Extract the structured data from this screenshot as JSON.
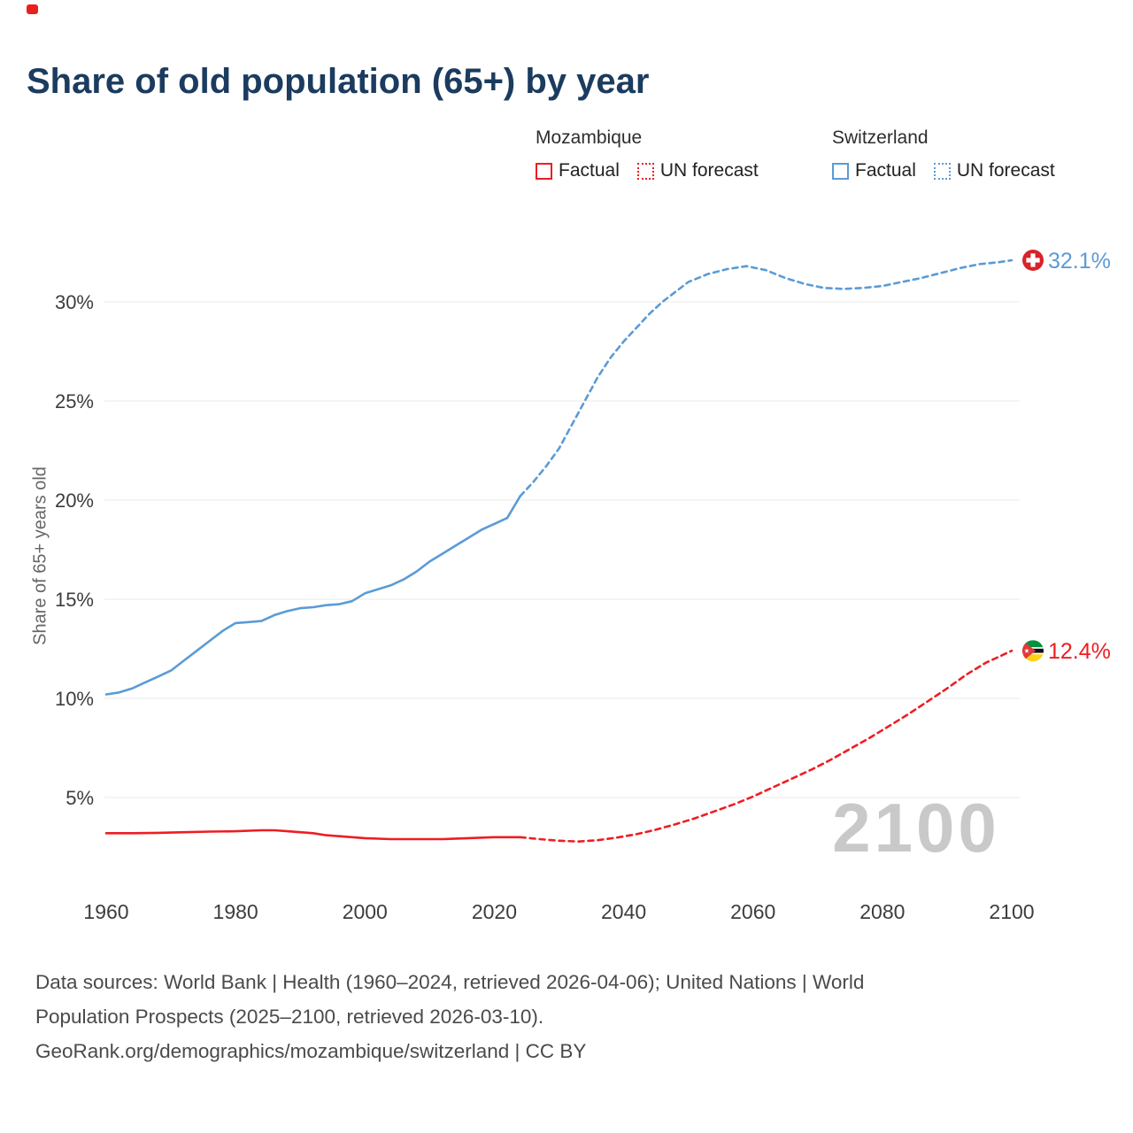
{
  "title": "Share of old population (65+) by year",
  "legend": {
    "groups": [
      {
        "name": "Mozambique",
        "color": "#ee1d23",
        "items": [
          {
            "label": "Factual",
            "style": "solid"
          },
          {
            "label": "UN forecast",
            "style": "dotted"
          }
        ]
      },
      {
        "name": "Switzerland",
        "color": "#5b9bd5",
        "items": [
          {
            "label": "Factual",
            "style": "solid"
          },
          {
            "label": "UN forecast",
            "style": "dotted"
          }
        ]
      }
    ]
  },
  "chart_data": {
    "type": "line",
    "title": "Share of old population (65+) by year",
    "xlabel": "",
    "ylabel": "Share of 65+ years old",
    "x_ticks": [
      1960,
      1980,
      2000,
      2020,
      2040,
      2060,
      2080,
      2100
    ],
    "y_ticks": [
      5,
      10,
      15,
      20,
      25,
      30
    ],
    "y_tick_labels": [
      "5%",
      "10%",
      "15%",
      "20%",
      "25%",
      "30%"
    ],
    "xlim": [
      1958,
      2104
    ],
    "ylim": [
      2,
      33.5
    ],
    "grid": "horizontal",
    "legend_position": "top-right",
    "watermark": "2100",
    "series": [
      {
        "name": "Switzerland Factual",
        "color": "#5b9bd5",
        "style": "solid",
        "points": [
          [
            1960,
            10.2
          ],
          [
            1962,
            10.3
          ],
          [
            1964,
            10.5
          ],
          [
            1966,
            10.8
          ],
          [
            1968,
            11.1
          ],
          [
            1970,
            11.4
          ],
          [
            1972,
            11.9
          ],
          [
            1974,
            12.4
          ],
          [
            1976,
            12.9
          ],
          [
            1978,
            13.4
          ],
          [
            1980,
            13.8
          ],
          [
            1982,
            13.85
          ],
          [
            1984,
            13.9
          ],
          [
            1986,
            14.2
          ],
          [
            1988,
            14.4
          ],
          [
            1990,
            14.55
          ],
          [
            1992,
            14.6
          ],
          [
            1994,
            14.7
          ],
          [
            1996,
            14.75
          ],
          [
            1998,
            14.9
          ],
          [
            2000,
            15.3
          ],
          [
            2002,
            15.5
          ],
          [
            2004,
            15.7
          ],
          [
            2006,
            16.0
          ],
          [
            2008,
            16.4
          ],
          [
            2010,
            16.9
          ],
          [
            2012,
            17.3
          ],
          [
            2014,
            17.7
          ],
          [
            2016,
            18.1
          ],
          [
            2018,
            18.5
          ],
          [
            2020,
            18.8
          ],
          [
            2022,
            19.1
          ],
          [
            2024,
            20.2
          ]
        ]
      },
      {
        "name": "Switzerland UN forecast",
        "color": "#5b9bd5",
        "style": "dashed",
        "end_label": "32.1%",
        "points": [
          [
            2024,
            20.2
          ],
          [
            2026,
            20.9
          ],
          [
            2028,
            21.7
          ],
          [
            2030,
            22.6
          ],
          [
            2032,
            23.8
          ],
          [
            2034,
            25.0
          ],
          [
            2036,
            26.2
          ],
          [
            2038,
            27.2
          ],
          [
            2040,
            28.0
          ],
          [
            2042,
            28.7
          ],
          [
            2044,
            29.4
          ],
          [
            2046,
            30.0
          ],
          [
            2048,
            30.5
          ],
          [
            2050,
            31.0
          ],
          [
            2053,
            31.4
          ],
          [
            2056,
            31.65
          ],
          [
            2059,
            31.8
          ],
          [
            2062,
            31.6
          ],
          [
            2065,
            31.2
          ],
          [
            2068,
            30.9
          ],
          [
            2071,
            30.7
          ],
          [
            2074,
            30.65
          ],
          [
            2077,
            30.7
          ],
          [
            2080,
            30.8
          ],
          [
            2083,
            31.0
          ],
          [
            2086,
            31.2
          ],
          [
            2089,
            31.45
          ],
          [
            2092,
            31.7
          ],
          [
            2095,
            31.9
          ],
          [
            2098,
            32.0
          ],
          [
            2100,
            32.1
          ]
        ]
      },
      {
        "name": "Mozambique Factual",
        "color": "#ee1d23",
        "style": "solid",
        "points": [
          [
            1960,
            3.2
          ],
          [
            1964,
            3.2
          ],
          [
            1968,
            3.22
          ],
          [
            1972,
            3.25
          ],
          [
            1976,
            3.28
          ],
          [
            1980,
            3.3
          ],
          [
            1984,
            3.35
          ],
          [
            1986,
            3.35
          ],
          [
            1988,
            3.3
          ],
          [
            1990,
            3.25
          ],
          [
            1992,
            3.2
          ],
          [
            1994,
            3.1
          ],
          [
            1996,
            3.05
          ],
          [
            1998,
            3.0
          ],
          [
            2000,
            2.95
          ],
          [
            2004,
            2.9
          ],
          [
            2008,
            2.9
          ],
          [
            2012,
            2.9
          ],
          [
            2016,
            2.95
          ],
          [
            2020,
            3.0
          ],
          [
            2024,
            3.0
          ]
        ]
      },
      {
        "name": "Mozambique UN forecast",
        "color": "#ee1d23",
        "style": "dashed",
        "end_label": "12.4%",
        "points": [
          [
            2024,
            3.0
          ],
          [
            2027,
            2.9
          ],
          [
            2030,
            2.82
          ],
          [
            2033,
            2.78
          ],
          [
            2036,
            2.85
          ],
          [
            2039,
            2.98
          ],
          [
            2042,
            3.15
          ],
          [
            2045,
            3.38
          ],
          [
            2048,
            3.65
          ],
          [
            2051,
            3.95
          ],
          [
            2054,
            4.3
          ],
          [
            2057,
            4.65
          ],
          [
            2060,
            5.05
          ],
          [
            2063,
            5.5
          ],
          [
            2066,
            5.95
          ],
          [
            2069,
            6.4
          ],
          [
            2072,
            6.9
          ],
          [
            2075,
            7.45
          ],
          [
            2078,
            8.0
          ],
          [
            2081,
            8.6
          ],
          [
            2084,
            9.2
          ],
          [
            2087,
            9.85
          ],
          [
            2090,
            10.5
          ],
          [
            2093,
            11.2
          ],
          [
            2096,
            11.8
          ],
          [
            2098,
            12.1
          ],
          [
            2100,
            12.4
          ]
        ]
      }
    ]
  },
  "footer": {
    "line1": "Data sources: World Bank | Health (1960–2024, retrieved 2026-04-06); United Nations | World",
    "line2": "Population Prospects (2025–2100, retrieved 2026-03-10).",
    "line3": "GeoRank.org/demographics/mozambique/switzerland | CC BY"
  }
}
